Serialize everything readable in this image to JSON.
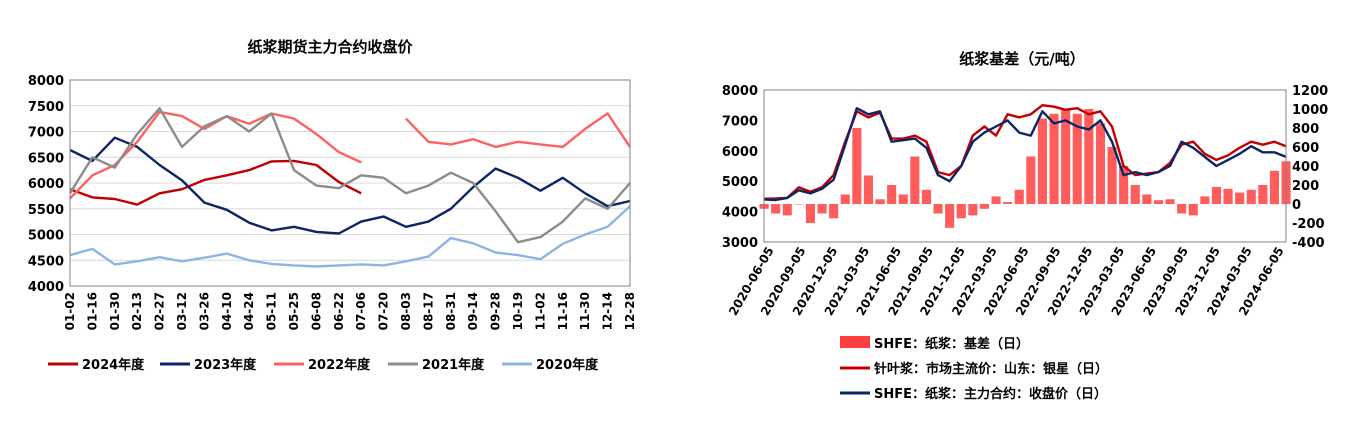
{
  "chart_data": [
    {
      "type": "line",
      "title": "纸浆期货主力合约收盘价",
      "x_ticks": [
        "01-02",
        "01-16",
        "01-30",
        "02-13",
        "02-27",
        "03-12",
        "03-26",
        "04-10",
        "04-24",
        "05-11",
        "05-25",
        "06-08",
        "06-22",
        "07-06",
        "07-20",
        "08-03",
        "08-17",
        "08-31",
        "09-14",
        "09-28",
        "10-19",
        "11-02",
        "11-16",
        "11-30",
        "12-14",
        "12-28"
      ],
      "ylim": [
        4000,
        8000
      ],
      "y_ticks": [
        4000,
        4500,
        5000,
        5500,
        6000,
        6500,
        7000,
        7500,
        8000
      ],
      "grid": true,
      "legend_position": "bottom",
      "series": [
        {
          "name": "2024年度",
          "color": "#c00000",
          "values": [
            5880,
            5720,
            5690,
            5580,
            5800,
            5880,
            6060,
            6150,
            6250,
            6420,
            6430,
            6350,
            6020,
            5800,
            null,
            null,
            null,
            null,
            null,
            null,
            null,
            null,
            null,
            null,
            null,
            null
          ]
        },
        {
          "name": "2023年度",
          "color": "#0c2567",
          "values": [
            6640,
            6430,
            6880,
            6700,
            6350,
            6050,
            5620,
            5480,
            5230,
            5080,
            5150,
            5050,
            5020,
            5250,
            5350,
            5150,
            5250,
            5500,
            5920,
            6280,
            6100,
            5850,
            6100,
            5800,
            5550,
            5650
          ]
        },
        {
          "name": "2022年度",
          "color": "#ff6060",
          "values": [
            5700,
            6150,
            6350,
            6800,
            7380,
            7300,
            7050,
            7300,
            7150,
            7350,
            7250,
            6950,
            6600,
            6400,
            null,
            7250,
            6800,
            6750,
            6850,
            6700,
            6800,
            6750,
            6700,
            7050,
            7350,
            6700
          ]
        },
        {
          "name": "2021年度",
          "color": "#8c8c8c",
          "values": [
            5800,
            6500,
            6300,
            6950,
            7450,
            6700,
            7100,
            7300,
            7000,
            7350,
            6250,
            5950,
            5900,
            6150,
            6100,
            5800,
            5950,
            6200,
            6000,
            5450,
            4850,
            4950,
            5250,
            5700,
            5500,
            6000
          ]
        },
        {
          "name": "2020年度",
          "color": "#8eb4e3",
          "values": [
            4600,
            4720,
            4420,
            4480,
            4560,
            4480,
            4550,
            4630,
            4500,
            4430,
            4400,
            4380,
            4400,
            4420,
            4400,
            4480,
            4570,
            4930,
            4830,
            4650,
            4600,
            4520,
            4820,
            5000,
            5150,
            5550
          ]
        }
      ]
    },
    {
      "type": "line",
      "title": "纸浆基差（元/吨）",
      "x_ticks": [
        "2020-06-05",
        "2020-09-05",
        "2020-12-05",
        "2021-03-05",
        "2021-06-05",
        "2021-09-05",
        "2021-12-05",
        "2022-03-05",
        "2022-06-05",
        "2022-09-05",
        "2022-12-05",
        "2023-03-05",
        "2023-06-05",
        "2023-09-05",
        "2023-12-05",
        "2024-03-05",
        "2024-06-05"
      ],
      "ylim_left": [
        3000,
        8000
      ],
      "y_ticks_left": [
        3000,
        4000,
        5000,
        6000,
        7000,
        8000
      ],
      "ylim_right": [
        -400,
        1200
      ],
      "y_ticks_right": [
        -400,
        -200,
        0,
        200,
        400,
        600,
        800,
        1000,
        1200
      ],
      "grid": false,
      "legend_position": "bottom",
      "series": [
        {
          "name": "SHFE：纸浆：基差（日）",
          "type": "bar",
          "axis": "right",
          "color": "#ff4040",
          "values": [
            -50,
            -100,
            -120,
            0,
            -200,
            -100,
            -150,
            100,
            800,
            300,
            50,
            200,
            100,
            500,
            150,
            -100,
            -250,
            -150,
            -120,
            -50,
            80,
            20,
            150,
            500,
            900,
            950,
            1000,
            950,
            1000,
            850,
            600,
            400,
            200,
            100,
            40,
            50,
            -100,
            -120,
            80,
            180,
            160,
            120,
            150,
            200,
            350,
            450
          ]
        },
        {
          "name": "针叶浆：市场主流价：山东：银星（日）",
          "type": "line",
          "axis": "left",
          "color": "#c00000",
          "values": [
            4420,
            4430,
            4450,
            4800,
            4650,
            4800,
            5200,
            6300,
            7300,
            7100,
            7250,
            6400,
            6400,
            6500,
            6300,
            5300,
            5200,
            5500,
            6500,
            6800,
            6500,
            7200,
            7100,
            7200,
            7500,
            7450,
            7350,
            7400,
            7200,
            7300,
            6800,
            5500,
            5200,
            5250,
            5300,
            5600,
            6200,
            6300,
            5900,
            5700,
            5850,
            6100,
            6300,
            6200,
            6300,
            6150
          ]
        },
        {
          "name": "SHFE：纸浆：主力合约：收盘价（日）",
          "type": "line",
          "axis": "left",
          "color": "#0c2567",
          "values": [
            4400,
            4380,
            4450,
            4700,
            4600,
            4750,
            5050,
            6200,
            7400,
            7200,
            7300,
            6300,
            6350,
            6400,
            6100,
            5200,
            5000,
            5500,
            6300,
            6600,
            6800,
            7000,
            6600,
            6500,
            7300,
            6900,
            7000,
            6800,
            6700,
            7000,
            6300,
            5200,
            5300,
            5200,
            5300,
            5500,
            6300,
            6100,
            5800,
            5500,
            5700,
            5900,
            6150,
            5950,
            5950,
            5800
          ]
        }
      ]
    }
  ]
}
